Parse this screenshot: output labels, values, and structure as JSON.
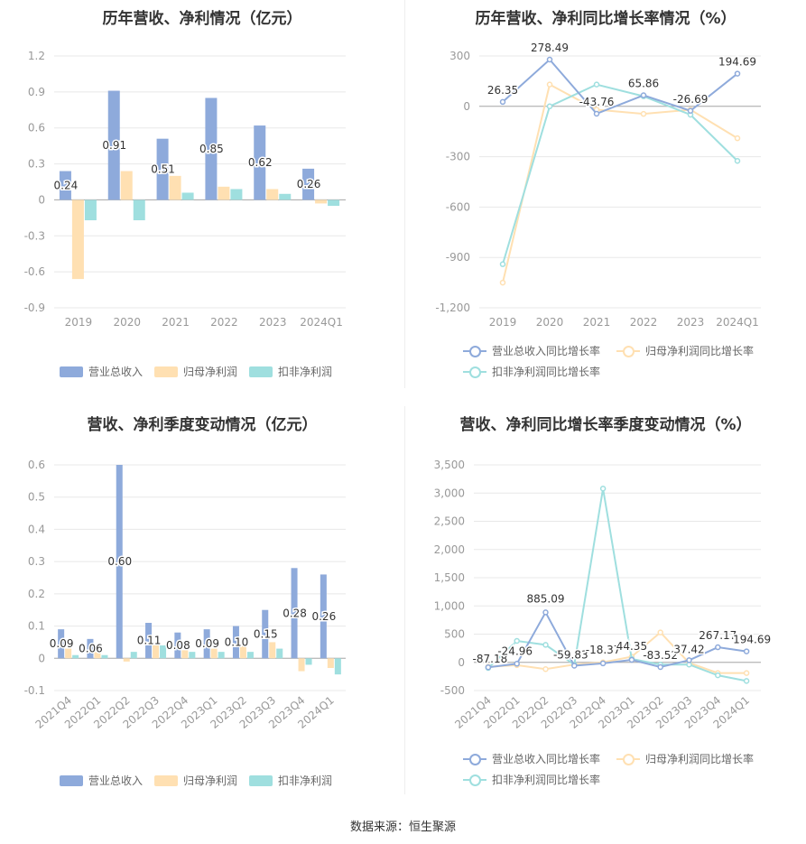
{
  "colors": {
    "revenue": "#8eaadb",
    "net": "#ffe0b2",
    "deduct": "#9fdfdf",
    "grid": "#e8e8e8",
    "axis": "#aaaaaa",
    "tick": "#999999"
  },
  "source_text": "数据来源：恒生聚源",
  "chart_data": [
    {
      "type": "bar",
      "title": "历年营收、净利情况（亿元）",
      "categories": [
        "2019",
        "2020",
        "2021",
        "2022",
        "2023",
        "2024Q1"
      ],
      "ylim": [
        -0.9,
        1.2
      ],
      "yticks": [
        "1.2",
        "0.9",
        "0.6",
        "0.3",
        "0",
        "-0.3",
        "-0.6",
        "-0.9"
      ],
      "series": [
        {
          "name": "营业总收入",
          "values": [
            0.24,
            0.91,
            0.51,
            0.85,
            0.62,
            0.26
          ],
          "labels": [
            "0.24",
            "0.91",
            "0.51",
            "0.85",
            "0.62",
            "0.26"
          ]
        },
        {
          "name": "归母净利润",
          "values": [
            -0.66,
            0.24,
            0.2,
            0.11,
            0.09,
            -0.03
          ]
        },
        {
          "name": "扣非净利润",
          "values": [
            -0.17,
            -0.17,
            0.06,
            0.09,
            0.05,
            -0.05
          ]
        }
      ],
      "grid": true,
      "legend": "bottom"
    },
    {
      "type": "line",
      "title": "历年营收、净利同比增长率情况（%）",
      "categories": [
        "2019",
        "2020",
        "2021",
        "2022",
        "2023",
        "2024Q1"
      ],
      "ylim": [
        -1200,
        300
      ],
      "yticks": [
        "300",
        "0",
        "-300",
        "-600",
        "-900",
        "-1,200"
      ],
      "series": [
        {
          "name": "营业总收入同比增长率",
          "values": [
            26.35,
            278.49,
            -43.76,
            65.86,
            -26.69,
            194.69
          ],
          "labels": [
            "26.35",
            "278.49",
            "-43.76",
            "65.86",
            "-26.69",
            "194.69"
          ]
        },
        {
          "name": "归母净利润同比增长率",
          "values": [
            -1050,
            130,
            -20,
            -45,
            -20,
            -190
          ]
        },
        {
          "name": "扣非净利润同比增长率",
          "values": [
            -940,
            0,
            130,
            60,
            -50,
            -325
          ]
        }
      ],
      "grid": true,
      "legend": "bottom"
    },
    {
      "type": "bar",
      "title": "营收、净利季度变动情况（亿元）",
      "categories": [
        "2021Q4",
        "2022Q1",
        "2022Q2",
        "2022Q3",
        "2022Q4",
        "2023Q1",
        "2023Q2",
        "2023Q3",
        "2023Q4",
        "2024Q1"
      ],
      "ylim": [
        -0.1,
        0.6
      ],
      "yticks": [
        "0.6",
        "0.5",
        "0.4",
        "0.3",
        "0.2",
        "0.1",
        "0",
        "-0.1"
      ],
      "series": [
        {
          "name": "营业总收入",
          "values": [
            0.09,
            0.06,
            0.6,
            0.11,
            0.08,
            0.09,
            0.1,
            0.15,
            0.28,
            0.26
          ],
          "labels": [
            "0.09",
            "0.06",
            "0.60",
            "0.11",
            "0.08",
            "0.09",
            "0.10",
            "0.15",
            "0.28",
            "0.26"
          ]
        },
        {
          "name": "归母净利润",
          "values": [
            0.03,
            0.02,
            -0.01,
            0.045,
            0.025,
            0.03,
            0.04,
            0.05,
            -0.04,
            -0.03
          ]
        },
        {
          "name": "扣非净利润",
          "values": [
            0.01,
            0.01,
            0.02,
            0.04,
            0.02,
            0.02,
            0.02,
            0.03,
            -0.02,
            -0.05
          ]
        }
      ],
      "grid": true,
      "legend": "bottom"
    },
    {
      "type": "line",
      "title": "营收、净利同比增长率季度变动情况（%）",
      "categories": [
        "2021Q4",
        "2022Q1",
        "2022Q2",
        "2022Q3",
        "2022Q4",
        "2023Q1",
        "2023Q2",
        "2023Q3",
        "2023Q4",
        "2024Q1"
      ],
      "ylim": [
        -500,
        3500
      ],
      "yticks": [
        "3,500",
        "3,000",
        "2,500",
        "2,000",
        "1,500",
        "1,000",
        "500",
        "0",
        "-500"
      ],
      "series": [
        {
          "name": "营业总收入同比增长率",
          "values": [
            -87.18,
            -24.96,
            885.09,
            -59.83,
            -18.37,
            44.35,
            -83.52,
            37.42,
            267.17,
            194.69
          ],
          "labels": [
            "-87.18",
            "-24.96",
            "885.09",
            "-59.83",
            "-18.37",
            "44.35",
            "-83.52",
            "37.42",
            "267.17",
            "194.69"
          ]
        },
        {
          "name": "归母净利润同比增长率",
          "values": [
            -80,
            -50,
            -120,
            -40,
            0,
            100,
            530,
            -10,
            -190,
            -190
          ]
        },
        {
          "name": "扣非净利润同比增长率",
          "values": [
            -100,
            380,
            310,
            -40,
            3080,
            60,
            -40,
            -40,
            -230,
            -330
          ]
        }
      ],
      "grid": true,
      "legend": "bottom"
    }
  ]
}
